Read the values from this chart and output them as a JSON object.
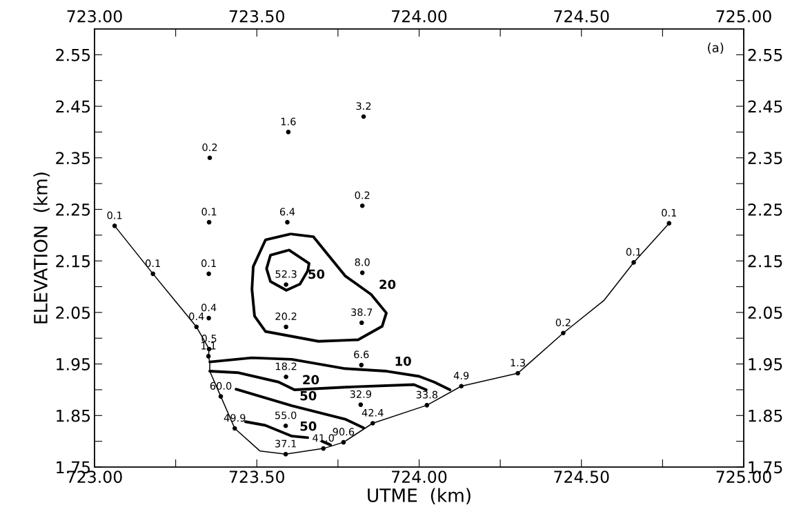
{
  "chart_data": {
    "type": "scatter",
    "xlabel": "UTME  (km)",
    "ylabel": "ELEVATION  (km)",
    "xlim": [
      723.0,
      725.0
    ],
    "x2lim": [
      723.0,
      725.0
    ],
    "ylim": [
      1.75,
      2.6
    ],
    "y2lim": [
      1.75,
      2.6
    ],
    "xticks": [
      {
        "value": 723.0,
        "label": "723.00"
      },
      {
        "value": 723.25,
        "label": null
      },
      {
        "value": 723.5,
        "label": "723.50"
      },
      {
        "value": 723.75,
        "label": null
      },
      {
        "value": 724.0,
        "label": "724.00"
      },
      {
        "value": 724.25,
        "label": null
      },
      {
        "value": 724.5,
        "label": "724.50"
      },
      {
        "value": 724.75,
        "label": null
      },
      {
        "value": 725.0,
        "label": "725.00"
      }
    ],
    "x2ticks": [
      {
        "value": 723.0,
        "label": "723.00"
      },
      {
        "value": 723.25,
        "label": null
      },
      {
        "value": 723.5,
        "label": "723.50"
      },
      {
        "value": 723.75,
        "label": null
      },
      {
        "value": 724.0,
        "label": "724.00"
      },
      {
        "value": 724.25,
        "label": null
      },
      {
        "value": 724.5,
        "label": "724.50"
      },
      {
        "value": 724.75,
        "label": null
      },
      {
        "value": 725.0,
        "label": "725.00"
      }
    ],
    "yticks": [
      {
        "value": 1.75,
        "label": "1.75"
      },
      {
        "value": 1.8,
        "label": null
      },
      {
        "value": 1.85,
        "label": "1.85"
      },
      {
        "value": 1.9,
        "label": null
      },
      {
        "value": 1.95,
        "label": "1.95"
      },
      {
        "value": 2.0,
        "label": null
      },
      {
        "value": 2.05,
        "label": "2.05"
      },
      {
        "value": 2.1,
        "label": null
      },
      {
        "value": 2.15,
        "label": "2.15"
      },
      {
        "value": 2.2,
        "label": null
      },
      {
        "value": 2.25,
        "label": "2.25"
      },
      {
        "value": 2.3,
        "label": null
      },
      {
        "value": 2.35,
        "label": "2.35"
      },
      {
        "value": 2.4,
        "label": null
      },
      {
        "value": 2.45,
        "label": "2.45"
      },
      {
        "value": 2.5,
        "label": null
      },
      {
        "value": 2.55,
        "label": "2.55"
      }
    ],
    "y2ticks": [
      {
        "value": 1.75,
        "label": "1.75"
      },
      {
        "value": 1.8,
        "label": null
      },
      {
        "value": 1.85,
        "label": "1.85"
      },
      {
        "value": 1.9,
        "label": null
      },
      {
        "value": 1.95,
        "label": "1.95"
      },
      {
        "value": 2.0,
        "label": null
      },
      {
        "value": 2.05,
        "label": "2.05"
      },
      {
        "value": 2.1,
        "label": null
      },
      {
        "value": 2.15,
        "label": "2.15"
      },
      {
        "value": 2.2,
        "label": null
      },
      {
        "value": 2.25,
        "label": "2.25"
      },
      {
        "value": 2.3,
        "label": null
      },
      {
        "value": 2.35,
        "label": "2.35"
      },
      {
        "value": 2.4,
        "label": null
      },
      {
        "value": 2.45,
        "label": "2.45"
      },
      {
        "value": 2.5,
        "label": null
      },
      {
        "value": 2.55,
        "label": "2.55"
      }
    ],
    "grid": false,
    "legend": false,
    "series": [
      {
        "type": "line",
        "color": "#000000",
        "marker": "none",
        "x": [
          723.062,
          723.18,
          723.314,
          723.353,
          723.351,
          723.355,
          723.355,
          723.389,
          723.432,
          723.51,
          723.589,
          723.705,
          723.767,
          723.857,
          724.024,
          724.13,
          724.304,
          724.444,
          724.569,
          724.661,
          724.77
        ],
        "values": [
          2.218,
          2.125,
          2.022,
          1.979,
          1.965,
          1.954,
          1.936,
          1.887,
          1.825,
          1.781,
          1.775,
          1.786,
          1.798,
          1.835,
          1.87,
          1.907,
          1.932,
          2.01,
          2.073,
          2.147,
          2.223
        ]
      },
      {
        "type": "line",
        "color": "#000000",
        "marker": "none",
        "line_style": "solid",
        "x": [
          723.608,
          723.674,
          723.714,
          723.772,
          723.852,
          723.899,
          723.886,
          723.812,
          723.69,
          723.527,
          723.493,
          723.485,
          723.489,
          723.527,
          723.602
        ],
        "values": [
          2.202,
          2.197,
          2.166,
          2.121,
          2.085,
          2.049,
          2.023,
          1.997,
          1.994,
          2.013,
          2.043,
          2.095,
          2.139,
          2.191,
          2.202
        ]
      },
      {
        "type": "line",
        "color": "#000000",
        "marker": "none",
        "line_style": "solid",
        "x": [
          723.599,
          723.661,
          723.657,
          723.633,
          723.591,
          723.542,
          723.53,
          723.542,
          723.594
        ],
        "values": [
          2.171,
          2.145,
          2.131,
          2.105,
          2.093,
          2.11,
          2.135,
          2.161,
          2.17
        ]
      },
      {
        "type": "line",
        "color": "#000000",
        "marker": "none",
        "line_style": "solid",
        "x": [
          723.355,
          723.485,
          723.608,
          723.772,
          723.9,
          724.0,
          724.046,
          724.095
        ],
        "values": [
          1.954,
          1.962,
          1.959,
          1.941,
          1.936,
          1.926,
          1.915,
          1.9
        ]
      },
      {
        "type": "line",
        "color": "#000000",
        "marker": "none",
        "line_style": "solid",
        "x": [
          723.355,
          723.444,
          723.567,
          723.616,
          723.772,
          723.984,
          724.022
        ],
        "values": [
          1.936,
          1.933,
          1.915,
          1.9,
          1.905,
          1.91,
          1.9
        ]
      },
      {
        "type": "line",
        "color": "#000000",
        "marker": "none",
        "line_style": "solid",
        "x": [
          723.436,
          723.608,
          723.772,
          723.829
        ],
        "values": [
          1.901,
          1.869,
          1.843,
          1.826
        ]
      },
      {
        "type": "line",
        "color": "#000000",
        "marker": "none",
        "line_style": "solid",
        "x": [
          723.465,
          723.526,
          723.608,
          723.657
        ],
        "values": [
          1.838,
          1.831,
          1.81,
          1.807
        ]
      },
      {
        "type": "line",
        "color": "#000000",
        "marker": "none",
        "line_style": "solid",
        "x": [
          723.701,
          723.727
        ],
        "values": [
          1.8,
          1.793
        ]
      },
      {
        "color": "#000000",
        "marker": "circle",
        "x": [
          723.062,
          723.18,
          723.314,
          723.353,
          723.351,
          723.389,
          723.432,
          723.589,
          723.705,
          723.767,
          723.857,
          724.024,
          724.13,
          724.304,
          724.444,
          724.661,
          724.77,
          723.355,
          723.597,
          723.829,
          723.353,
          723.594,
          723.825,
          723.352,
          723.825,
          723.59,
          723.352,
          723.59,
          723.823,
          723.822,
          723.59,
          723.82,
          723.589
        ],
        "values": [
          2.218,
          2.125,
          2.022,
          1.979,
          1.965,
          1.887,
          1.825,
          1.775,
          1.786,
          1.798,
          1.835,
          1.87,
          1.907,
          1.932,
          2.01,
          2.147,
          2.223,
          2.35,
          2.4,
          2.43,
          2.225,
          2.225,
          2.257,
          2.125,
          2.127,
          2.104,
          2.039,
          2.022,
          2.03,
          1.948,
          1.925,
          1.871,
          1.83
        ]
      }
    ],
    "annotations": [
      "(a)",
      {
        "text": "0.1",
        "x": 723.062,
        "y": 2.218
      },
      {
        "text": "0.1",
        "x": 723.18,
        "y": 2.125
      },
      {
        "text": "0.4",
        "x": 723.314,
        "y": 2.022
      },
      {
        "text": "0.5",
        "x": 723.353,
        "y": 1.979
      },
      {
        "text": "1.1",
        "x": 723.351,
        "y": 1.965
      },
      {
        "text": "60.0",
        "x": 723.389,
        "y": 1.887
      },
      {
        "text": "49.9",
        "x": 723.432,
        "y": 1.825
      },
      {
        "text": "37.1",
        "x": 723.589,
        "y": 1.775
      },
      {
        "text": "41.0",
        "x": 723.705,
        "y": 1.786
      },
      {
        "text": "90.6",
        "x": 723.767,
        "y": 1.798
      },
      {
        "text": "42.4",
        "x": 723.857,
        "y": 1.835
      },
      {
        "text": "33.8",
        "x": 724.024,
        "y": 1.87
      },
      {
        "text": "4.9",
        "x": 724.13,
        "y": 1.907
      },
      {
        "text": "1.3",
        "x": 724.304,
        "y": 1.932
      },
      {
        "text": "0.2",
        "x": 724.444,
        "y": 2.01
      },
      {
        "text": "0.1",
        "x": 724.661,
        "y": 2.147
      },
      {
        "text": "0.1",
        "x": 724.77,
        "y": 2.223
      },
      {
        "text": "0.2",
        "x": 723.355,
        "y": 2.35
      },
      {
        "text": "1.6",
        "x": 723.597,
        "y": 2.4
      },
      {
        "text": "3.2",
        "x": 723.829,
        "y": 2.43
      },
      {
        "text": "0.1",
        "x": 723.353,
        "y": 2.225
      },
      {
        "text": "6.4",
        "x": 723.594,
        "y": 2.225
      },
      {
        "text": "0.2",
        "x": 723.825,
        "y": 2.257
      },
      {
        "text": "0.1",
        "x": 723.352,
        "y": 2.125
      },
      {
        "text": "8.0",
        "x": 723.825,
        "y": 2.127
      },
      {
        "text": "52.3",
        "x": 723.59,
        "y": 2.104
      },
      {
        "text": "0.4",
        "x": 723.352,
        "y": 2.039
      },
      {
        "text": "20.2",
        "x": 723.59,
        "y": 2.022
      },
      {
        "text": "38.7",
        "x": 723.823,
        "y": 2.03
      },
      {
        "text": "6.6",
        "x": 723.822,
        "y": 1.948
      },
      {
        "text": "18.2",
        "x": 723.59,
        "y": 1.925
      },
      {
        "text": "32.9",
        "x": 723.82,
        "y": 1.871
      },
      {
        "text": "55.0",
        "x": 723.589,
        "y": 1.83
      },
      {
        "text": "50",
        "x": 723.633,
        "y": 2.105
      },
      {
        "text": "20",
        "x": 723.852,
        "y": 2.085
      },
      {
        "text": "10",
        "x": 723.9,
        "y": 1.936
      },
      {
        "text": "20",
        "x": 723.616,
        "y": 1.9
      },
      {
        "text": "50",
        "x": 723.608,
        "y": 1.869
      },
      {
        "text": "50",
        "x": 723.608,
        "y": 1.81
      }
    ]
  }
}
